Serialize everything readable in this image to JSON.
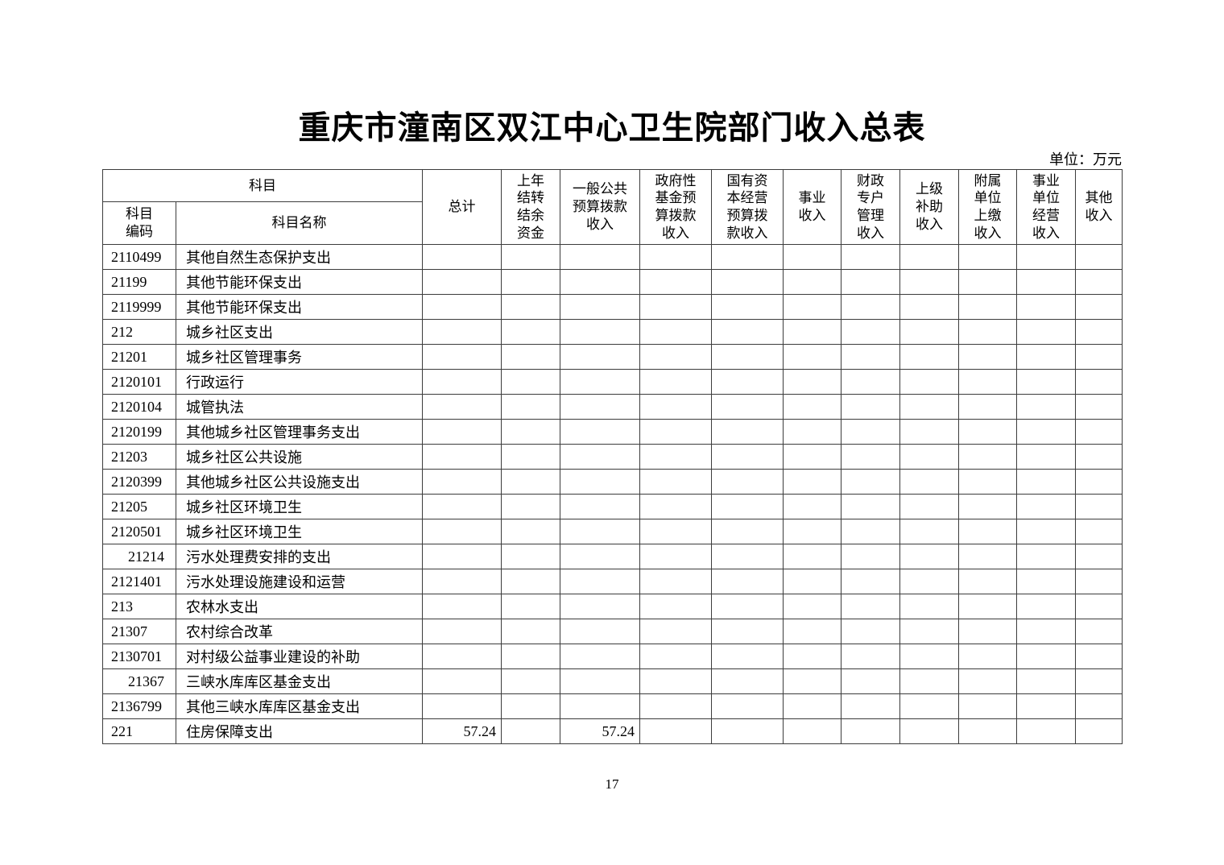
{
  "title": "重庆市潼南区双江中心卫生院部门收入总表",
  "unit_label": "单位：万元",
  "page_number": "17",
  "table": {
    "subject_header": "科目",
    "code_header": "科目\n编码",
    "name_header": "科目名称",
    "columns": [
      {
        "id": "total",
        "label": "总计"
      },
      {
        "id": "prev-year-carryover",
        "label": "上年\n结转\n结余\n资金"
      },
      {
        "id": "general-public-budget-appropriation",
        "label": "一般公共\n预算拨款\n收入"
      },
      {
        "id": "gov-fund-budget-appropriation",
        "label": "政府性\n基金预\n算拨款\n收入"
      },
      {
        "id": "state-capital-budget-appropriation",
        "label": "国有资\n本经营\n预算拨\n款收入"
      },
      {
        "id": "operational-income",
        "label": "事业\n收入"
      },
      {
        "id": "fiscal-special-account",
        "label": "财政\n专户\n管理\n收入"
      },
      {
        "id": "superior-subsidy",
        "label": "上级\n补助\n收入"
      },
      {
        "id": "affiliated-unit-remittance",
        "label": "附属\n单位\n上缴\n收入"
      },
      {
        "id": "institution-business-income",
        "label": "事业\n单位\n经营\n收入"
      },
      {
        "id": "other-income",
        "label": "其他\n收入"
      }
    ],
    "rows": [
      {
        "code": "2110499",
        "name": "其他自然生态保护支出",
        "values": [
          "",
          "",
          "",
          "",
          "",
          "",
          "",
          "",
          "",
          "",
          ""
        ]
      },
      {
        "code": "21199",
        "name": "其他节能环保支出",
        "values": [
          "",
          "",
          "",
          "",
          "",
          "",
          "",
          "",
          "",
          "",
          ""
        ]
      },
      {
        "code": "2119999",
        "name": "其他节能环保支出",
        "values": [
          "",
          "",
          "",
          "",
          "",
          "",
          "",
          "",
          "",
          "",
          ""
        ]
      },
      {
        "code": "212",
        "name": "城乡社区支出",
        "values": [
          "",
          "",
          "",
          "",
          "",
          "",
          "",
          "",
          "",
          "",
          ""
        ]
      },
      {
        "code": "21201",
        "name": "城乡社区管理事务",
        "values": [
          "",
          "",
          "",
          "",
          "",
          "",
          "",
          "",
          "",
          "",
          ""
        ]
      },
      {
        "code": "2120101",
        "name": "行政运行",
        "values": [
          "",
          "",
          "",
          "",
          "",
          "",
          "",
          "",
          "",
          "",
          ""
        ]
      },
      {
        "code": "2120104",
        "name": "城管执法",
        "values": [
          "",
          "",
          "",
          "",
          "",
          "",
          "",
          "",
          "",
          "",
          ""
        ]
      },
      {
        "code": "2120199",
        "name": "其他城乡社区管理事务支出",
        "values": [
          "",
          "",
          "",
          "",
          "",
          "",
          "",
          "",
          "",
          "",
          ""
        ]
      },
      {
        "code": "21203",
        "name": "城乡社区公共设施",
        "values": [
          "",
          "",
          "",
          "",
          "",
          "",
          "",
          "",
          "",
          "",
          ""
        ]
      },
      {
        "code": "2120399",
        "name": "其他城乡社区公共设施支出",
        "values": [
          "",
          "",
          "",
          "",
          "",
          "",
          "",
          "",
          "",
          "",
          ""
        ]
      },
      {
        "code": "21205",
        "name": "城乡社区环境卫生",
        "values": [
          "",
          "",
          "",
          "",
          "",
          "",
          "",
          "",
          "",
          "",
          ""
        ]
      },
      {
        "code": "2120501",
        "name": "城乡社区环境卫生",
        "values": [
          "",
          "",
          "",
          "",
          "",
          "",
          "",
          "",
          "",
          "",
          ""
        ]
      },
      {
        "code": "21214",
        "code_align": "right",
        "name": "污水处理费安排的支出",
        "values": [
          "",
          "",
          "",
          "",
          "",
          "",
          "",
          "",
          "",
          "",
          ""
        ]
      },
      {
        "code": "2121401",
        "name": "污水处理设施建设和运营",
        "values": [
          "",
          "",
          "",
          "",
          "",
          "",
          "",
          "",
          "",
          "",
          ""
        ]
      },
      {
        "code": "213",
        "name": "农林水支出",
        "values": [
          "",
          "",
          "",
          "",
          "",
          "",
          "",
          "",
          "",
          "",
          ""
        ]
      },
      {
        "code": "21307",
        "name": "农村综合改革",
        "values": [
          "",
          "",
          "",
          "",
          "",
          "",
          "",
          "",
          "",
          "",
          ""
        ]
      },
      {
        "code": "2130701",
        "name": "对村级公益事业建设的补助",
        "values": [
          "",
          "",
          "",
          "",
          "",
          "",
          "",
          "",
          "",
          "",
          ""
        ]
      },
      {
        "code": "21367",
        "code_align": "right",
        "name": "三峡水库库区基金支出",
        "values": [
          "",
          "",
          "",
          "",
          "",
          "",
          "",
          "",
          "",
          "",
          ""
        ]
      },
      {
        "code": "2136799",
        "name": "其他三峡水库库区基金支出",
        "values": [
          "",
          "",
          "",
          "",
          "",
          "",
          "",
          "",
          "",
          "",
          ""
        ]
      },
      {
        "code": "221",
        "name": "住房保障支出",
        "values": [
          "57.24",
          "",
          "57.24",
          "",
          "",
          "",
          "",
          "",
          "",
          "",
          ""
        ]
      }
    ]
  }
}
